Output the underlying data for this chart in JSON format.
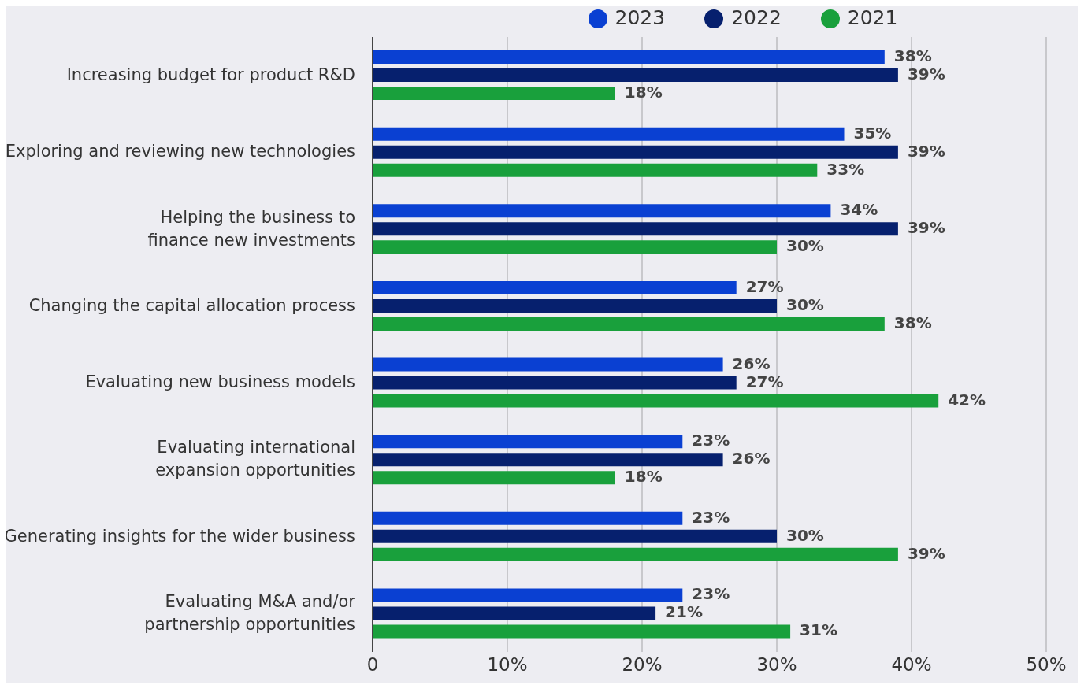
{
  "chart_data": {
    "type": "bar",
    "orientation": "horizontal",
    "categories": [
      "Increasing budget for product R&D",
      "Exploring and reviewing new technologies",
      "Helping the business to\nfinance new investments",
      "Changing the capital allocation process",
      "Evaluating new business models",
      "Evaluating international\nexpansion opportunities",
      "Generating insights for the wider business",
      "Evaluating M&A and/or\npartnership opportunities"
    ],
    "series": [
      {
        "name": "2023",
        "color": "#0a40d2",
        "values": [
          38,
          35,
          34,
          27,
          26,
          23,
          23,
          23
        ],
        "value_labels": [
          "38%",
          "35%",
          "34%",
          "27%",
          "26%",
          "23%",
          "23%",
          "23%"
        ]
      },
      {
        "name": "2022",
        "color": "#06206e",
        "values": [
          39,
          39,
          39,
          30,
          27,
          26,
          30,
          21
        ],
        "value_labels": [
          "39%",
          "39%",
          "39%",
          "30%",
          "27%",
          "26%",
          "30%",
          "21%"
        ]
      },
      {
        "name": "2021",
        "color": "#19a03c",
        "values": [
          18,
          33,
          30,
          38,
          42,
          18,
          39,
          31
        ],
        "value_labels": [
          "18%",
          "33%",
          "30%",
          "38%",
          "42%",
          "18%",
          "39%",
          "31%"
        ]
      }
    ],
    "xlim": [
      0,
      50
    ],
    "xticks": [
      0,
      {
        "value": 10,
        "label": "10%"
      },
      {
        "value": 20,
        "label": "20%"
      },
      {
        "value": 30,
        "label": "30%"
      },
      {
        "value": 40,
        "label": "40%"
      },
      {
        "value": 50,
        "label": "50%"
      }
    ],
    "grid": "x",
    "legend": "top"
  }
}
